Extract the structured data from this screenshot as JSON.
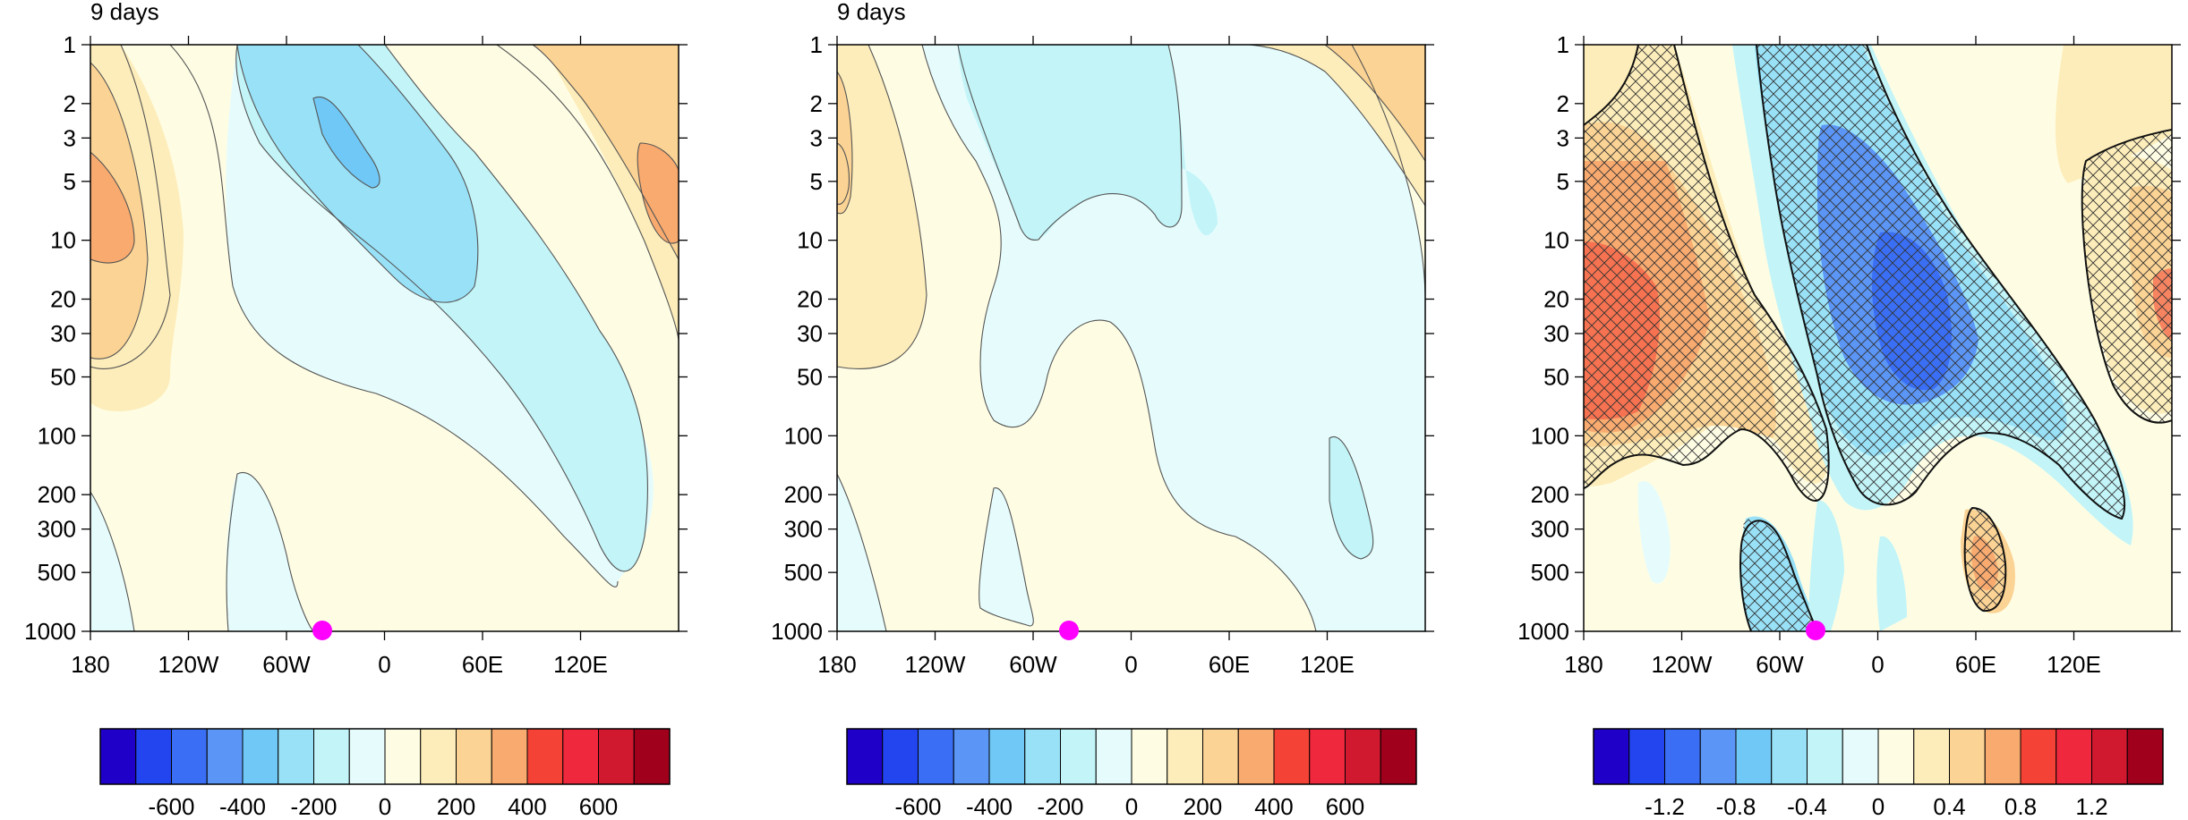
{
  "chart_data": [
    {
      "type": "heatmap",
      "title": "9 days",
      "xticks": [
        "180",
        "120W",
        "60W",
        "0",
        "60E",
        "120E"
      ],
      "yticks": [
        "1",
        "2",
        "3",
        "5",
        "10",
        "20",
        "30",
        "50",
        "100",
        "200",
        "300",
        "500",
        "1000"
      ],
      "y_scale": "log",
      "colorbar": {
        "labels": [
          "-600",
          "-400",
          "-200",
          "0",
          "200",
          "400",
          "600"
        ],
        "colors": [
          "#1f00c8",
          "#2245f0",
          "#3a6ff5",
          "#5b95f5",
          "#6fc8f5",
          "#98e1f7",
          "#c2f4f8",
          "#e6fcfc",
          "#fefde4",
          "#fdedba",
          "#fbd394",
          "#f8aa6f",
          "#f44336",
          "#f0283d",
          "#d0182e",
          "#a0001c"
        ]
      },
      "marker": {
        "lon": -40,
        "level": 1000,
        "color": "#ff00ff"
      }
    },
    {
      "type": "heatmap",
      "title": "9 days",
      "xticks": [
        "180",
        "120W",
        "60W",
        "0",
        "60E",
        "120E"
      ],
      "yticks": [
        "1",
        "2",
        "3",
        "5",
        "10",
        "20",
        "30",
        "50",
        "100",
        "200",
        "300",
        "500",
        "1000"
      ],
      "y_scale": "log",
      "colorbar": {
        "labels": [
          "-600",
          "-400",
          "-200",
          "0",
          "200",
          "400",
          "600"
        ],
        "colors": [
          "#1f00c8",
          "#2245f0",
          "#3a6ff5",
          "#5b95f5",
          "#6fc8f5",
          "#98e1f7",
          "#c2f4f8",
          "#e6fcfc",
          "#fefde4",
          "#fdedba",
          "#fbd394",
          "#f8aa6f",
          "#f44336",
          "#f0283d",
          "#d0182e",
          "#a0001c"
        ]
      },
      "marker": {
        "lon": -40,
        "level": 1000,
        "color": "#ff00ff"
      }
    },
    {
      "type": "heatmap",
      "title": "",
      "xticks": [
        "180",
        "120W",
        "60W",
        "0",
        "60E",
        "120E"
      ],
      "yticks": [
        "1",
        "2",
        "3",
        "5",
        "10",
        "20",
        "30",
        "50",
        "100",
        "200",
        "300",
        "500",
        "1000"
      ],
      "y_scale": "log",
      "hatched_regions": true,
      "colorbar": {
        "labels": [
          "-1.2",
          "-0.8",
          "-0.4",
          "0",
          "0.4",
          "0.8",
          "1.2"
        ],
        "colors": [
          "#1f00c8",
          "#2245f0",
          "#3a6ff5",
          "#5b95f5",
          "#6fc8f5",
          "#98e1f7",
          "#c2f4f8",
          "#e6fcfc",
          "#fefde4",
          "#fdedba",
          "#fbd394",
          "#f8aa6f",
          "#f44336",
          "#f0283d",
          "#d0182e",
          "#a0001c"
        ]
      },
      "marker": {
        "lon": -40,
        "level": 1000,
        "color": "#ff00ff"
      }
    }
  ]
}
